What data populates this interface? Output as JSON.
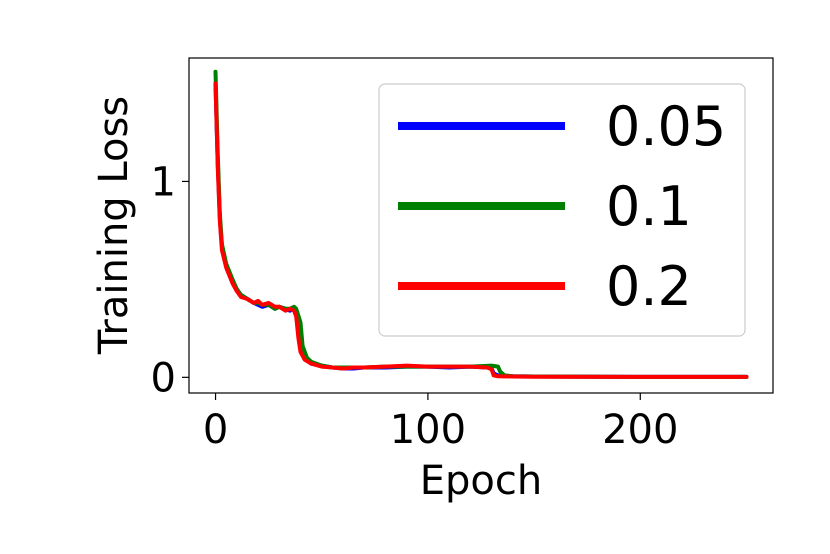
{
  "chart_data": {
    "type": "line",
    "xlabel": "Epoch",
    "ylabel": "Training Loss",
    "xlim": [
      -12.5,
      262.5
    ],
    "ylim": [
      -0.08,
      1.63
    ],
    "x_ticks": [
      0,
      100,
      200
    ],
    "y_ticks": [
      0,
      1
    ],
    "x_tick_labels": [
      "0",
      "100",
      "200"
    ],
    "y_tick_labels": [
      "0",
      "1"
    ],
    "grid": false,
    "legend_position": "top-right",
    "series": [
      {
        "name": "0.05",
        "color": "#0000ff",
        "points": [
          [
            0,
            1.5
          ],
          [
            1,
            1.1
          ],
          [
            2,
            0.82
          ],
          [
            3,
            0.67
          ],
          [
            5,
            0.57
          ],
          [
            8,
            0.49
          ],
          [
            10,
            0.45
          ],
          [
            12,
            0.42
          ],
          [
            15,
            0.4
          ],
          [
            18,
            0.38
          ],
          [
            20,
            0.37
          ],
          [
            22,
            0.36
          ],
          [
            25,
            0.37
          ],
          [
            28,
            0.35
          ],
          [
            30,
            0.36
          ],
          [
            33,
            0.35
          ],
          [
            35,
            0.34
          ],
          [
            37,
            0.35
          ],
          [
            38,
            0.33
          ],
          [
            39,
            0.26
          ],
          [
            40,
            0.15
          ],
          [
            42,
            0.1
          ],
          [
            45,
            0.07
          ],
          [
            50,
            0.06
          ],
          [
            55,
            0.05
          ],
          [
            60,
            0.045
          ],
          [
            65,
            0.045
          ],
          [
            70,
            0.05
          ],
          [
            80,
            0.05
          ],
          [
            90,
            0.055
          ],
          [
            100,
            0.055
          ],
          [
            110,
            0.05
          ],
          [
            120,
            0.055
          ],
          [
            128,
            0.05
          ],
          [
            130,
            0.045
          ],
          [
            131,
            0.02
          ],
          [
            133,
            0.01
          ],
          [
            140,
            0.005
          ],
          [
            150,
            0.004
          ],
          [
            200,
            0.002
          ],
          [
            250,
            0.002
          ]
        ]
      },
      {
        "name": "0.1",
        "color": "#008000",
        "points": [
          [
            0,
            1.56
          ],
          [
            1,
            1.15
          ],
          [
            2,
            0.84
          ],
          [
            3,
            0.68
          ],
          [
            5,
            0.58
          ],
          [
            8,
            0.5
          ],
          [
            10,
            0.45
          ],
          [
            12,
            0.42
          ],
          [
            15,
            0.4
          ],
          [
            18,
            0.38
          ],
          [
            20,
            0.38
          ],
          [
            22,
            0.37
          ],
          [
            25,
            0.37
          ],
          [
            28,
            0.35
          ],
          [
            30,
            0.36
          ],
          [
            33,
            0.35
          ],
          [
            35,
            0.35
          ],
          [
            37,
            0.36
          ],
          [
            38,
            0.35
          ],
          [
            40,
            0.28
          ],
          [
            41,
            0.16
          ],
          [
            43,
            0.1
          ],
          [
            45,
            0.08
          ],
          [
            50,
            0.06
          ],
          [
            55,
            0.05
          ],
          [
            60,
            0.05
          ],
          [
            65,
            0.05
          ],
          [
            70,
            0.05
          ],
          [
            80,
            0.055
          ],
          [
            90,
            0.055
          ],
          [
            100,
            0.055
          ],
          [
            110,
            0.055
          ],
          [
            120,
            0.055
          ],
          [
            130,
            0.06
          ],
          [
            133,
            0.055
          ],
          [
            134,
            0.03
          ],
          [
            136,
            0.01
          ],
          [
            140,
            0.005
          ],
          [
            150,
            0.004
          ],
          [
            200,
            0.002
          ],
          [
            250,
            0.002
          ]
        ]
      },
      {
        "name": "0.2",
        "color": "#ff0000",
        "points": [
          [
            0,
            1.5
          ],
          [
            1,
            1.08
          ],
          [
            2,
            0.8
          ],
          [
            3,
            0.65
          ],
          [
            5,
            0.56
          ],
          [
            8,
            0.48
          ],
          [
            10,
            0.44
          ],
          [
            12,
            0.41
          ],
          [
            15,
            0.4
          ],
          [
            18,
            0.38
          ],
          [
            20,
            0.39
          ],
          [
            22,
            0.37
          ],
          [
            25,
            0.38
          ],
          [
            28,
            0.36
          ],
          [
            30,
            0.36
          ],
          [
            33,
            0.34
          ],
          [
            35,
            0.35
          ],
          [
            37,
            0.34
          ],
          [
            38,
            0.31
          ],
          [
            39,
            0.2
          ],
          [
            40,
            0.13
          ],
          [
            42,
            0.09
          ],
          [
            45,
            0.07
          ],
          [
            50,
            0.055
          ],
          [
            55,
            0.05
          ],
          [
            60,
            0.045
          ],
          [
            65,
            0.05
          ],
          [
            70,
            0.05
          ],
          [
            80,
            0.055
          ],
          [
            90,
            0.06
          ],
          [
            100,
            0.055
          ],
          [
            110,
            0.055
          ],
          [
            120,
            0.055
          ],
          [
            128,
            0.05
          ],
          [
            130,
            0.04
          ],
          [
            131,
            0.01
          ],
          [
            133,
            0.005
          ],
          [
            140,
            0.004
          ],
          [
            150,
            0.003
          ],
          [
            200,
            0.002
          ],
          [
            250,
            0.002
          ]
        ]
      }
    ]
  }
}
